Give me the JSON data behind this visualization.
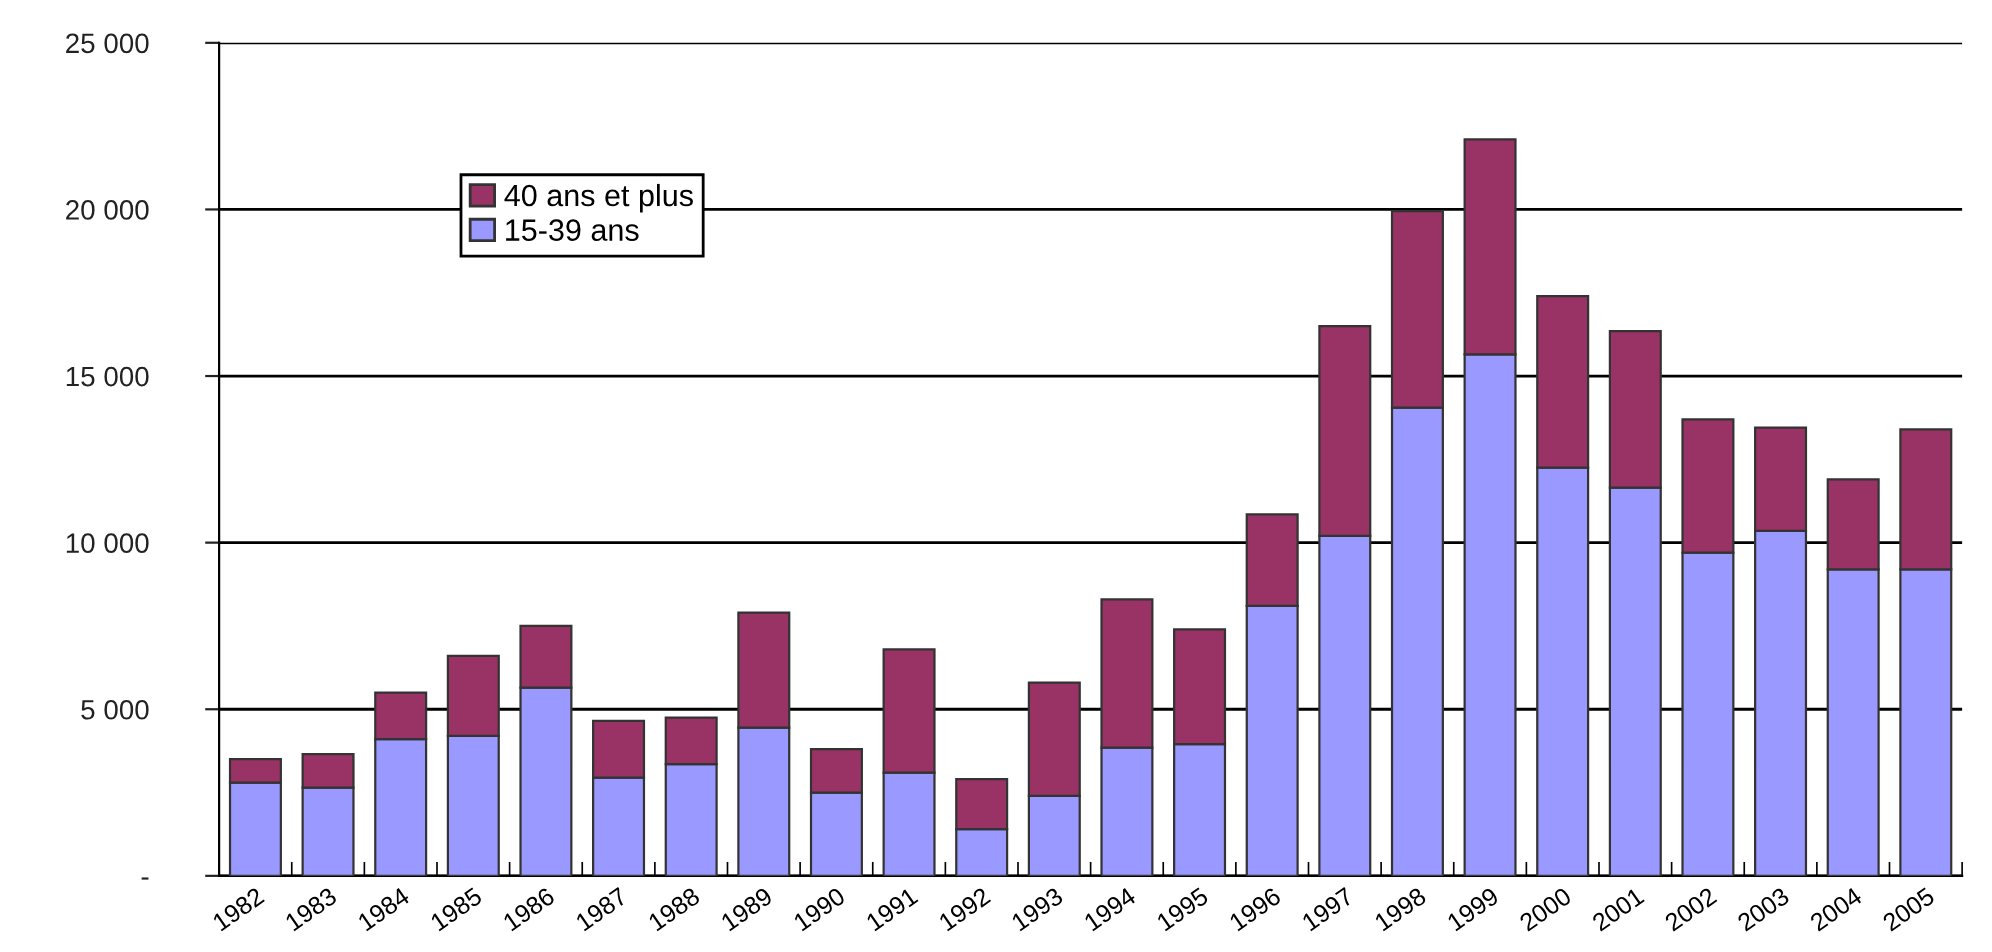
{
  "chart_data": {
    "type": "bar",
    "stacked": true,
    "categories": [
      "1982",
      "1983",
      "1984",
      "1985",
      "1986",
      "1987",
      "1988",
      "1989",
      "1990",
      "1991",
      "1992",
      "1993",
      "1994",
      "1995",
      "1996",
      "1997",
      "1998",
      "1999",
      "2000",
      "2001",
      "2002",
      "2003",
      "2004",
      "2005"
    ],
    "series": [
      {
        "name": "15-39 ans",
        "color": "#9999ff",
        "values": [
          2800,
          2650,
          4100,
          4200,
          5650,
          2950,
          3350,
          4450,
          2500,
          3100,
          1400,
          2400,
          3850,
          3950,
          8100,
          10200,
          14050,
          15650,
          12250,
          11650,
          9700,
          10350,
          9200,
          9200
        ]
      },
      {
        "name": "40 ans et plus",
        "color": "#993366",
        "values": [
          700,
          1000,
          1400,
          2400,
          1850,
          1700,
          1400,
          3450,
          1300,
          3700,
          1500,
          3400,
          4450,
          3450,
          2750,
          6300,
          5900,
          6450,
          5150,
          4700,
          4000,
          3100,
          2700,
          4200
        ]
      }
    ],
    "ylim": [
      0,
      25000
    ],
    "yticks": [
      {
        "value": 0,
        "label": "-"
      },
      {
        "value": 5000,
        "label": "5 000"
      },
      {
        "value": 10000,
        "label": "10 000"
      },
      {
        "value": 15000,
        "label": "15 000"
      },
      {
        "value": 20000,
        "label": "20 000"
      },
      {
        "value": 25000,
        "label": "25 000"
      }
    ],
    "grid": "y",
    "legend": "top left"
  }
}
